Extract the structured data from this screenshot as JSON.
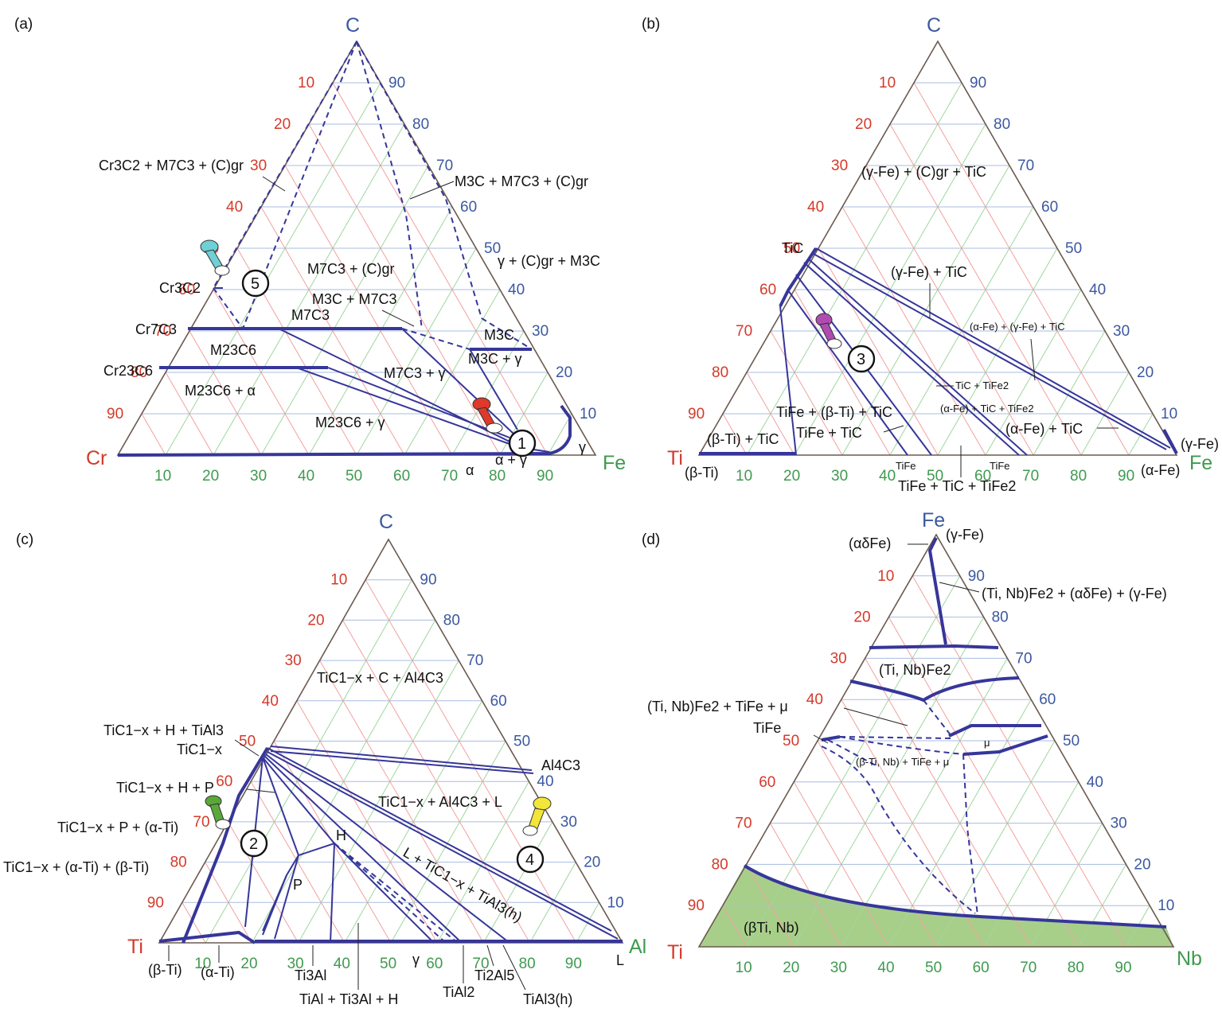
{
  "panels": [
    {
      "id": "a",
      "label": "(a)",
      "vertices": {
        "left": "Cr",
        "right": "Fe",
        "top": "C"
      },
      "left_ticks": [
        "10",
        "20",
        "30",
        "40",
        "50",
        "60",
        "70",
        "80",
        "90"
      ],
      "right_ticks": [
        "90",
        "80",
        "70",
        "60",
        "50",
        "40",
        "30",
        "20",
        "10"
      ],
      "bottom_ticks": [
        "10",
        "20",
        "30",
        "40",
        "50",
        "60",
        "70",
        "80",
        "90"
      ],
      "marker": {
        "number": "1",
        "color": "#e0382a"
      },
      "marker2": {
        "number": "5",
        "color": "#6fd0d6"
      }
    },
    {
      "id": "b",
      "label": "(b)",
      "vertices": {
        "left": "Ti",
        "right": "Fe",
        "top": "C"
      },
      "left_ticks": [
        "10",
        "20",
        "30",
        "40",
        "50",
        "60",
        "70",
        "80",
        "90"
      ],
      "right_ticks": [
        "90",
        "80",
        "70",
        "60",
        "50",
        "40",
        "30",
        "20",
        "10"
      ],
      "bottom_ticks": [
        "10",
        "20",
        "30",
        "40",
        "50",
        "60",
        "70",
        "80",
        "90"
      ],
      "marker": {
        "number": "3",
        "color": "#b04bb0"
      }
    },
    {
      "id": "c",
      "label": "(c)",
      "vertices": {
        "left": "Ti",
        "right": "Al",
        "top": "C"
      },
      "left_ticks": [
        "10",
        "20",
        "30",
        "40",
        "50",
        "60",
        "70",
        "80",
        "90"
      ],
      "right_ticks": [
        "90",
        "80",
        "70",
        "60",
        "50",
        "40",
        "30",
        "20",
        "10"
      ],
      "bottom_ticks": [
        "10",
        "20",
        "30",
        "40",
        "50",
        "60",
        "70",
        "80",
        "90"
      ],
      "marker": {
        "number": "2",
        "color": "#5aa83a"
      },
      "marker2": {
        "number": "4",
        "color": "#f2e63a"
      }
    },
    {
      "id": "d",
      "label": "(d)",
      "vertices": {
        "left": "Ti",
        "right": "Nb",
        "top": "Fe"
      },
      "left_ticks": [
        "10",
        "20",
        "30",
        "40",
        "50",
        "60",
        "70",
        "80",
        "90"
      ],
      "right_ticks": [
        "90",
        "80",
        "70",
        "60",
        "50",
        "40",
        "30",
        "20",
        "10"
      ],
      "bottom_ticks": [
        "10",
        "20",
        "30",
        "40",
        "50",
        "60",
        "70",
        "80",
        "90"
      ],
      "fill_color": "#a8cf8a"
    }
  ],
  "labels_a": {
    "l1": "Cr3C2 + M7C3 + (C)gr",
    "l2": "M3C + M7C3 + (C)gr",
    "l3": "M7C3 + (C)gr",
    "l4": "γ + (C)gr + M3C",
    "l5": "M3C + M7C3",
    "l6": "M7C3",
    "l7": "Cr3C2",
    "l8": "Cr7C3",
    "l9": "M23C6",
    "l10": "Cr23C6",
    "l11": "M3C",
    "l12": "M3C + γ",
    "l13": "M7C3 + γ",
    "l14": "M23C6 + α",
    "l15": "M23C6 + γ",
    "l16": "α",
    "l17": "α + γ",
    "l18": "γ"
  },
  "labels_b": {
    "l1": "(γ-Fe) + (C)gr + TiC",
    "l2": "TiC",
    "l3": "(γ-Fe) + TiC",
    "l4": "(α-Fe) + (γ-Fe) + TiC",
    "l5": "TiC + TiFe2",
    "l6": "TiFe + (β-Ti) + TiC",
    "l7": "(α-Fe) + TiC + TiFe2",
    "l8": "TiFe + TiC",
    "l9": "(α-Fe) + TiC",
    "l10": "(β-Ti) + TiC",
    "l11": "(β-Ti)",
    "l12": "TiFe",
    "l13": "TiFe",
    "l14": "TiFe + TiC + TiFe2",
    "l15": "(α-Fe)",
    "l16": "(γ-Fe)"
  },
  "labels_c": {
    "l1": "TiC1−x + C + Al4C3",
    "l2": "TiC1−x + H + TiAl3",
    "l3": "TiC1−x",
    "l4": "Al4C3",
    "l5": "TiC1−x + H + P",
    "l6": "TiC1−x + Al4C3 + L",
    "l7": "TiC1−x + P + (α-Ti)",
    "l8": "H",
    "l9": "L + TiC1−x + TiAl3(h)",
    "l10": "TiC1−x + (α-Ti) + (β-Ti)",
    "l11": "P",
    "l12": "(β-Ti)",
    "l13": "(α-Ti)",
    "l14": "Ti3Al",
    "l15": "TiAl + Ti3Al + H",
    "l16": "γ",
    "l17": "TiAl2",
    "l18": "Ti2Al5",
    "l19": "TiAl3(h)",
    "l20": "L"
  },
  "labels_d": {
    "l1": "(αδFe)",
    "l2": "(γ-Fe)",
    "l3": "(Ti, Nb)Fe2 + (αδFe) + (γ-Fe)",
    "l4": "(Ti, Nb)Fe2",
    "l5": "(Ti, Nb)Fe2 + TiFe + μ",
    "l6": "TiFe",
    "l7": "μ",
    "l8": "(β-Ti, Nb) + TiFe + μ",
    "l9": "(βTi, Nb)"
  }
}
